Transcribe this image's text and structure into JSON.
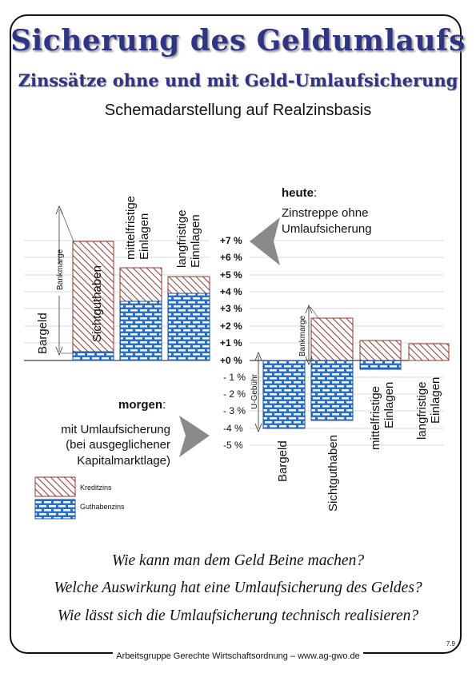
{
  "header": {
    "title": "Sicherung des Geldumlaufs",
    "subtitle": "Zinssätze ohne und mit Geld-Umlaufsicherung",
    "caption": "Schemadarstellung auf Realzinsbasis"
  },
  "axis": {
    "ticks": [
      "+7 %",
      "+6 %",
      "+5 %",
      "+4 %",
      "+3 %",
      "+2 %",
      "+1 %",
      "+0 %",
      "- 1 %",
      "- 2 %",
      "- 3 %",
      "-4 %",
      "-5 %"
    ]
  },
  "heute": {
    "label": "heute",
    "colon": ":",
    "line1": "Zinstreppe ohne",
    "line2": "Umlaufsicherung"
  },
  "morgen": {
    "label": "morgen",
    "colon": ":",
    "line1": "mit Umlaufsicherung",
    "line2": "(bei ausgeglichener",
    "line3": "Kapitalmarktlage)"
  },
  "left_chart": {
    "bankmarge": "Bankmarge",
    "categories": [
      {
        "line1": "Bargeld",
        "line2": ""
      },
      {
        "line1": "Sichtguthaben",
        "line2": ""
      },
      {
        "line1": "mittelfristige",
        "line2": "Einlagen"
      },
      {
        "line1": "langfristige",
        "line2": "Einnlagen"
      }
    ]
  },
  "right_chart": {
    "bankmarge": "Bankmarge",
    "u_gebuehr": "U-Gebühr",
    "categories": [
      {
        "line1": "Bargeld",
        "line2": ""
      },
      {
        "line1": "Sichtguthaben",
        "line2": ""
      },
      {
        "line1": "mittelfristige",
        "line2": "Einlagen"
      },
      {
        "line1": "langfristige",
        "line2": "Einlagen"
      }
    ]
  },
  "legend": {
    "kredit": "Kreditzins",
    "guthaben": "Guthabenzins"
  },
  "chart_data": [
    {
      "type": "bar",
      "categories": [
        "Bargeld",
        "Sichtguthaben",
        "mittelfristige Einlagen",
        "langfristige Einnlagen"
      ],
      "series": [
        {
          "name": "Guthabenzins",
          "values": [
            0,
            0.5,
            3.5,
            4
          ]
        },
        {
          "name": "Kreditzins",
          "values": [
            0,
            7,
            5.5,
            5
          ]
        }
      ],
      "ylim": [
        -5,
        7
      ]
    },
    {
      "type": "bar",
      "categories": [
        "Bargeld",
        "Sichtguthaben",
        "mittelfristige Einlagen",
        "langfristige Einlagen"
      ],
      "series": [
        {
          "name": "Guthabenzins",
          "values": [
            -4,
            -3.5,
            -0.5,
            0
          ]
        },
        {
          "name": "Kreditzins",
          "values": [
            0,
            2.5,
            1.2,
            1
          ]
        }
      ],
      "ylim": [
        -5,
        7
      ]
    }
  ],
  "questions": [
    "Wie kann man dem Geld Beine machen?",
    "Welche Auswirkung hat eine Umlaufsicherung des Geldes?",
    "Wie lässt sich die Umlaufsicherung technisch realisieren?"
  ],
  "footer": "Arbeitsgruppe Gerechte Wirtschaftsordnung – www.ag-gwo.de",
  "page_number": "7.9",
  "colors": {
    "title": "#2f3584",
    "kredit_hatch": "#8b3a32",
    "guthaben": "#2b6fc0"
  }
}
